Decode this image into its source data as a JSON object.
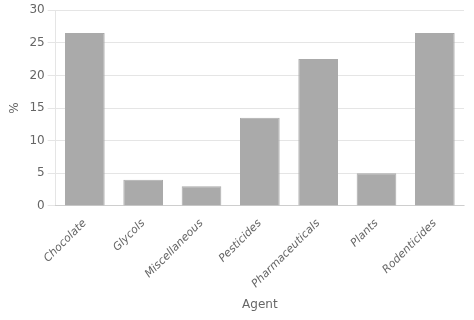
{
  "chart_data": {
    "type": "bar",
    "categories": [
      "Chocolate",
      "Glycols",
      "Miscellaneous",
      "Pesticides",
      "Pharmaceuticals",
      "Plants",
      "Rodenticides"
    ],
    "values": [
      26.5,
      4.0,
      3.0,
      13.5,
      22.5,
      5.0,
      26.5
    ],
    "color": "#aaaaaa",
    "xlabel": "Agent",
    "ylabel": "%",
    "ylim": [
      0,
      30
    ],
    "yticks": [
      0,
      5,
      10,
      15,
      20,
      25,
      30
    ],
    "grid": true
  }
}
